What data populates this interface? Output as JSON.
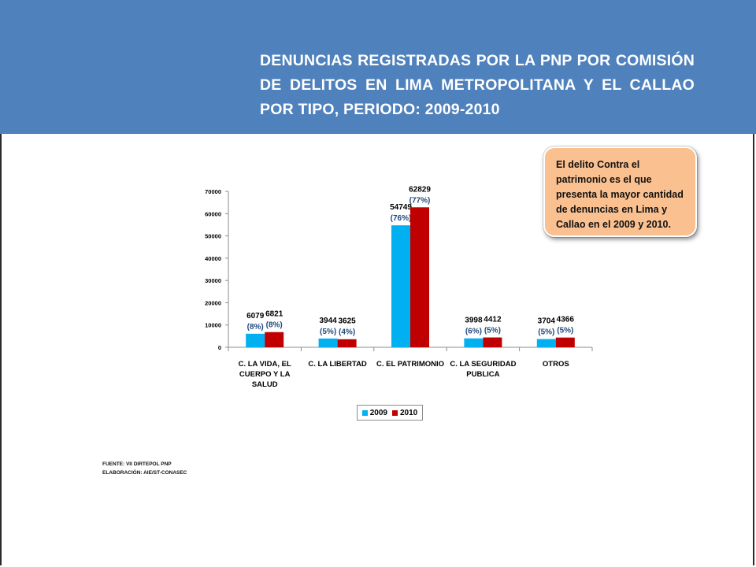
{
  "header": {
    "title": "DENUNCIAS REGISTRADAS POR LA PNP POR COMISIÓN DE DELITOS EN LIMA METROPOLITANA Y EL CALLAO POR TIPO, PERIODO: 2009-2010"
  },
  "callout": {
    "text": "El delito Contra el patrimonio es el que presenta la mayor cantidad de denuncias en Lima y Callao en el 2009 y 2010."
  },
  "source": {
    "line1": "FUENTE: VII DIRTEPOL PNP",
    "line2": "ELABORACIÓN: AIE/ST-CONASEC"
  },
  "chart_data": {
    "type": "bar",
    "title": "",
    "xlabel": "",
    "ylabel": "",
    "ylim": [
      0,
      70000
    ],
    "yticks": [
      "0",
      "10000",
      "20000",
      "30000",
      "40000",
      "50000",
      "60000",
      "70000"
    ],
    "grid": false,
    "legend_position": "bottom",
    "categories": [
      [
        "C. LA VIDA, EL",
        "CUERPO Y LA",
        "SALUD"
      ],
      [
        "C. LA LIBERTAD"
      ],
      [
        "C. EL PATRIMONIO"
      ],
      [
        "C. LA SEGURIDAD",
        "PUBLICA"
      ],
      [
        "OTROS"
      ]
    ],
    "series": [
      {
        "name": "2009",
        "color": "#00b0f0",
        "values": [
          6079,
          3944,
          54749,
          3998,
          3704
        ],
        "percent_labels": [
          "(8%)",
          "(5%)",
          "(76%)",
          "(6%)",
          "(5%)"
        ]
      },
      {
        "name": "2010",
        "color": "#c00000",
        "values": [
          6821,
          3625,
          62829,
          4412,
          4366
        ],
        "percent_labels": [
          "(8%)",
          "(4%)",
          "(77%)",
          "(5%)",
          "(5%)"
        ]
      }
    ],
    "value_label_color": "#000000",
    "percent_label_color": "#1f497d"
  }
}
